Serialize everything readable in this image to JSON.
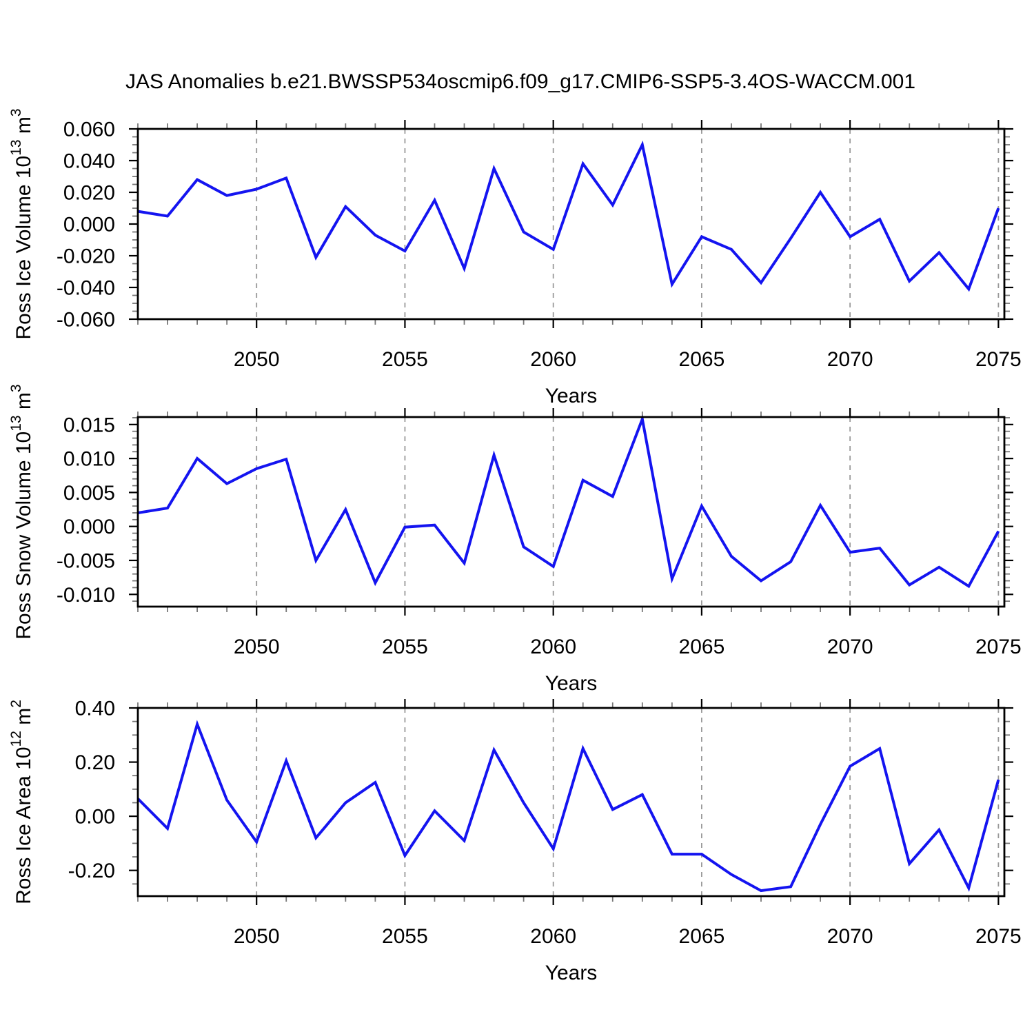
{
  "title": "JAS Anomalies b.e21.BWSSP534oscmip6.f09_g17.CMIP6-SSP5-3.4OS-WACCM.001",
  "line_color": "#1414f0",
  "grid_color": "#999999",
  "axis_color": "#000000",
  "minor_tick_color": "#777777",
  "chart_data": [
    {
      "id": "ross-ice-volume",
      "type": "line",
      "ylabel": "Ross Ice Volume 10^13 m^3",
      "ylabel_parts": [
        {
          "t": "Ross Ice Volume 10",
          "sup": false
        },
        {
          "t": "13",
          "sup": true
        },
        {
          "t": " m",
          "sup": false
        },
        {
          "t": "3",
          "sup": true
        }
      ],
      "xlabel": "Years",
      "xlim": [
        2046,
        2075.2
      ],
      "ylim": [
        -0.06,
        0.06
      ],
      "xminor_step": 1,
      "yminor_step": 0.005,
      "xticks": {
        "values": [
          2050,
          2055,
          2060,
          2065,
          2070,
          2075
        ],
        "labels": [
          "2050",
          "2055",
          "2060",
          "2065",
          "2070",
          "2075"
        ]
      },
      "yticks": {
        "values": [
          0.06,
          0.04,
          0.02,
          0.0,
          -0.02,
          -0.04,
          -0.06
        ],
        "labels": [
          "0.060",
          "0.040",
          "0.020",
          "0.000",
          "-0.020",
          "-0.040",
          "-0.060"
        ]
      },
      "grid": "vertical-dashed",
      "x": [
        2046,
        2047,
        2048,
        2049,
        2050,
        2051,
        2052,
        2053,
        2054,
        2055,
        2056,
        2057,
        2058,
        2059,
        2060,
        2061,
        2062,
        2063,
        2064,
        2065,
        2066,
        2067,
        2068,
        2069,
        2070,
        2071,
        2072,
        2073,
        2074,
        2075
      ],
      "y": [
        0.008,
        0.005,
        0.028,
        0.018,
        0.022,
        0.029,
        -0.021,
        0.011,
        -0.007,
        -0.017,
        0.015,
        -0.028,
        0.035,
        -0.005,
        -0.016,
        0.038,
        0.012,
        0.05,
        -0.038,
        -0.008,
        -0.016,
        -0.037,
        -0.009,
        0.02,
        -0.008,
        0.003,
        -0.036,
        -0.018,
        -0.041,
        0.01
      ]
    },
    {
      "id": "ross-snow-volume",
      "type": "line",
      "ylabel": "Ross Snow Volume 10^13 m^3",
      "ylabel_parts": [
        {
          "t": "Ross Snow Volume 10",
          "sup": false
        },
        {
          "t": "13",
          "sup": true
        },
        {
          "t": " m",
          "sup": false
        },
        {
          "t": "3",
          "sup": true
        }
      ],
      "xlabel": "Years",
      "xlim": [
        2046,
        2075.2
      ],
      "ylim": [
        -0.0118,
        0.0161
      ],
      "xminor_step": 1,
      "yminor_step": 0.001,
      "xticks": {
        "values": [
          2050,
          2055,
          2060,
          2065,
          2070,
          2075
        ],
        "labels": [
          "2050",
          "2055",
          "2060",
          "2065",
          "2070",
          "2075"
        ]
      },
      "yticks": {
        "values": [
          0.015,
          0.01,
          0.005,
          0.0,
          -0.005,
          -0.01
        ],
        "labels": [
          "0.015",
          "0.010",
          "0.005",
          "0.000",
          "-0.005",
          "-0.010"
        ]
      },
      "grid": "vertical-dashed",
      "x": [
        2046,
        2047,
        2048,
        2049,
        2050,
        2051,
        2052,
        2053,
        2054,
        2055,
        2056,
        2057,
        2058,
        2059,
        2060,
        2061,
        2062,
        2063,
        2064,
        2065,
        2066,
        2067,
        2068,
        2069,
        2070,
        2071,
        2072,
        2073,
        2074,
        2075
      ],
      "y": [
        0.002,
        0.0027,
        0.01,
        0.0063,
        0.0085,
        0.0099,
        -0.005,
        0.0025,
        -0.0083,
        -0.0001,
        0.0002,
        -0.0054,
        0.0105,
        -0.003,
        -0.0059,
        0.0068,
        0.0044,
        0.0158,
        -0.0077,
        0.003,
        -0.0044,
        -0.008,
        -0.0052,
        0.0031,
        -0.0038,
        -0.0032,
        -0.0086,
        -0.006,
        -0.0088,
        -0.0007
      ]
    },
    {
      "id": "ross-ice-area",
      "type": "line",
      "ylabel": "Ross Ice Area 10^12 m^2",
      "ylabel_parts": [
        {
          "t": "Ross Ice Area 10",
          "sup": false
        },
        {
          "t": "12",
          "sup": true
        },
        {
          "t": " m",
          "sup": false
        },
        {
          "t": "2",
          "sup": true
        }
      ],
      "xlabel": "Years",
      "xlim": [
        2046,
        2075.2
      ],
      "ylim": [
        -0.295,
        0.4
      ],
      "xminor_step": 1,
      "yminor_step": 0.05,
      "xticks": {
        "values": [
          2050,
          2055,
          2060,
          2065,
          2070,
          2075
        ],
        "labels": [
          "2050",
          "2055",
          "2060",
          "2065",
          "2070",
          "2075"
        ]
      },
      "yticks": {
        "values": [
          0.4,
          0.2,
          0.0,
          -0.2
        ],
        "labels": [
          "0.40",
          "0.20",
          "0.00",
          "-0.20"
        ]
      },
      "grid": "vertical-dashed",
      "x": [
        2046,
        2047,
        2048,
        2049,
        2050,
        2051,
        2052,
        2053,
        2054,
        2055,
        2056,
        2057,
        2058,
        2059,
        2060,
        2061,
        2062,
        2063,
        2064,
        2065,
        2066,
        2067,
        2068,
        2069,
        2070,
        2071,
        2072,
        2073,
        2074,
        2075
      ],
      "y": [
        0.065,
        -0.045,
        0.34,
        0.06,
        -0.095,
        0.205,
        -0.08,
        0.05,
        0.125,
        -0.145,
        0.02,
        -0.09,
        0.245,
        0.05,
        -0.12,
        0.25,
        0.025,
        0.08,
        -0.14,
        -0.14,
        -0.215,
        -0.275,
        -0.26,
        -0.03,
        0.185,
        0.25,
        -0.175,
        -0.05,
        -0.265,
        0.135
      ]
    }
  ]
}
